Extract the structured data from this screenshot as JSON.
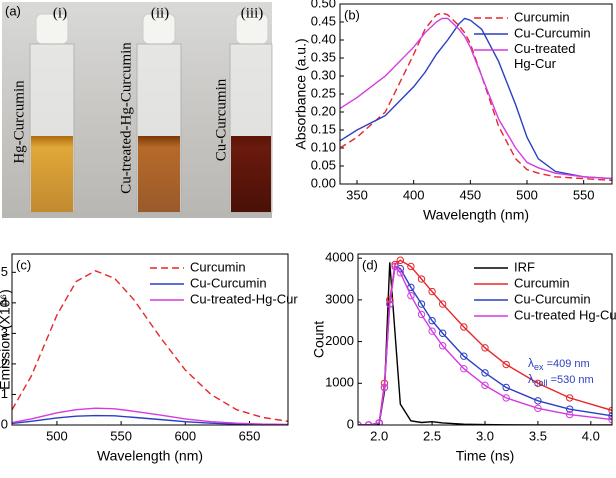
{
  "photo": {
    "panel_label": "(a)",
    "samples": [
      {
        "index": "(i)",
        "label": "Hg-Curcumin"
      },
      {
        "index": "(ii)",
        "label": "Cu-treated-Hg-Curcumin"
      },
      {
        "index": "(iii)",
        "label": "Cu-Curcumin"
      }
    ]
  },
  "chart_data": [
    {
      "type": "line",
      "panel_label": "(b)",
      "x_label": "Wavelength (nm)",
      "y_label": "Absorbance (a.u.)",
      "x": [
        335,
        350,
        375,
        400,
        410,
        420,
        425,
        430,
        440,
        445,
        450,
        460,
        475,
        490,
        500,
        510,
        525,
        550,
        575
      ],
      "xlim": [
        335,
        575
      ],
      "xticks": [
        350,
        400,
        450,
        500,
        550
      ],
      "ylim": [
        0,
        0.5
      ],
      "yticks": [
        {
          "value": 0,
          "label": "0.00"
        },
        {
          "value": 0.05,
          "label": "0.05"
        },
        {
          "value": 0.1,
          "label": "0.10"
        },
        {
          "value": 0.15,
          "label": "0.15"
        },
        {
          "value": 0.2,
          "label": "0.20"
        },
        {
          "value": 0.25,
          "label": "0.25"
        },
        {
          "value": 0.3,
          "label": "0.30"
        },
        {
          "value": 0.35,
          "label": "0.35"
        },
        {
          "value": 0.4,
          "label": "0.40"
        },
        {
          "value": 0.45,
          "label": "0.45"
        },
        {
          "value": 0.5,
          "label": "0.50"
        }
      ],
      "legend": "upper right",
      "legend_wrap": true,
      "series": [
        {
          "name": "Curcumin",
          "color": "#e8262a",
          "linestyle": "dashed",
          "values": [
            0.1,
            0.13,
            0.2,
            0.36,
            0.43,
            0.47,
            0.475,
            0.47,
            0.44,
            0.42,
            0.39,
            0.3,
            0.16,
            0.07,
            0.04,
            0.03,
            0.02,
            0.015,
            0.01
          ]
        },
        {
          "name": "Cu-Curcumin",
          "color": "#2b3fc4",
          "linestyle": "solid",
          "values": [
            0.12,
            0.15,
            0.19,
            0.27,
            0.31,
            0.36,
            0.38,
            0.4,
            0.445,
            0.46,
            0.455,
            0.43,
            0.34,
            0.22,
            0.13,
            0.07,
            0.035,
            0.02,
            0.015
          ]
        },
        {
          "name": "Cu-treated Hg-Cur",
          "color": "#d43be0",
          "linestyle": "solid",
          "values": [
            0.21,
            0.24,
            0.3,
            0.38,
            0.42,
            0.45,
            0.46,
            0.46,
            0.43,
            0.41,
            0.38,
            0.3,
            0.18,
            0.1,
            0.06,
            0.045,
            0.03,
            0.02,
            0.015
          ]
        }
      ]
    },
    {
      "type": "line",
      "panel_label": "(c)",
      "x_label": "Wavelength (nm)",
      "y_label": "Emission (X10⁶)",
      "x": [
        465,
        480,
        500,
        515,
        530,
        545,
        560,
        580,
        600,
        620,
        640,
        660,
        680
      ],
      "xlim": [
        465,
        680
      ],
      "xticks": [
        500,
        550,
        600,
        650
      ],
      "ylim": [
        0,
        5.6
      ],
      "yticks": [
        0,
        1,
        2,
        3,
        4,
        5
      ],
      "legend": "upper right",
      "series": [
        {
          "name": "Curcumin",
          "color": "#e8262a",
          "linestyle": "dashed",
          "values": [
            0.5,
            1.6,
            3.6,
            4.7,
            5.05,
            4.8,
            4.1,
            2.9,
            1.8,
            1.0,
            0.5,
            0.25,
            0.12
          ]
        },
        {
          "name": "Cu-Curcumin",
          "color": "#2b3fc4",
          "linestyle": "solid",
          "values": [
            0.05,
            0.12,
            0.23,
            0.29,
            0.31,
            0.3,
            0.25,
            0.18,
            0.11,
            0.06,
            0.03,
            0.015,
            0.01
          ]
        },
        {
          "name": "Cu-treated-Hg-Cur",
          "color": "#d43be0",
          "linestyle": "solid",
          "values": [
            0.08,
            0.2,
            0.4,
            0.5,
            0.55,
            0.53,
            0.45,
            0.33,
            0.2,
            0.11,
            0.06,
            0.03,
            0.02
          ]
        }
      ]
    },
    {
      "type": "line",
      "panel_label": "(d)",
      "x_label": "Time (ns)",
      "y_label": "Count",
      "x": [
        1.8,
        1.9,
        2.0,
        2.05,
        2.1,
        2.15,
        2.2,
        2.3,
        2.4,
        2.5,
        2.6,
        2.8,
        3.0,
        3.2,
        3.5,
        3.8,
        4.2
      ],
      "xlim": [
        1.8,
        4.2
      ],
      "xticks": [
        {
          "value": 2,
          "label": "2.0"
        },
        2.5,
        {
          "value": 3,
          "label": "3.0"
        },
        3.5,
        {
          "value": 4,
          "label": "4.0"
        }
      ],
      "ylim": [
        0,
        4100
      ],
      "yticks": [
        0,
        1000,
        2000,
        3000,
        4000
      ],
      "legend": "upper right",
      "annotations": [
        {
          "symbol": "λ",
          "sub": "ex",
          "text": " =409 nm"
        },
        {
          "symbol": "λ",
          "sub": "coll",
          "text": " =530 nm"
        }
      ],
      "series": [
        {
          "name": "IRF",
          "color": "#000000",
          "linestyle": "solid",
          "values": [
            0,
            0,
            30,
            800,
            3900,
            2200,
            500,
            100,
            60,
            80,
            50,
            20,
            10,
            5,
            0,
            0,
            0
          ]
        },
        {
          "name": "Curcumin",
          "color": "#e8262a",
          "linestyle": "solid",
          "marker": "circle",
          "values": [
            0,
            0,
            50,
            1000,
            3000,
            3850,
            3950,
            3800,
            3500,
            3200,
            2900,
            2350,
            1850,
            1450,
            1000,
            650,
            350
          ]
        },
        {
          "name": "Cu-Curcumin",
          "color": "#2b3fc4",
          "linestyle": "solid",
          "marker": "circle",
          "values": [
            0,
            0,
            50,
            900,
            2900,
            3800,
            3750,
            3300,
            2900,
            2500,
            2200,
            1650,
            1250,
            900,
            580,
            380,
            220
          ]
        },
        {
          "name": "Cu-treated Hg-Cur",
          "color": "#d43be0",
          "linestyle": "solid",
          "marker": "circle",
          "values": [
            0,
            0,
            50,
            900,
            2900,
            3800,
            3650,
            3100,
            2650,
            2250,
            1900,
            1350,
            950,
            650,
            400,
            250,
            130
          ]
        }
      ]
    }
  ]
}
